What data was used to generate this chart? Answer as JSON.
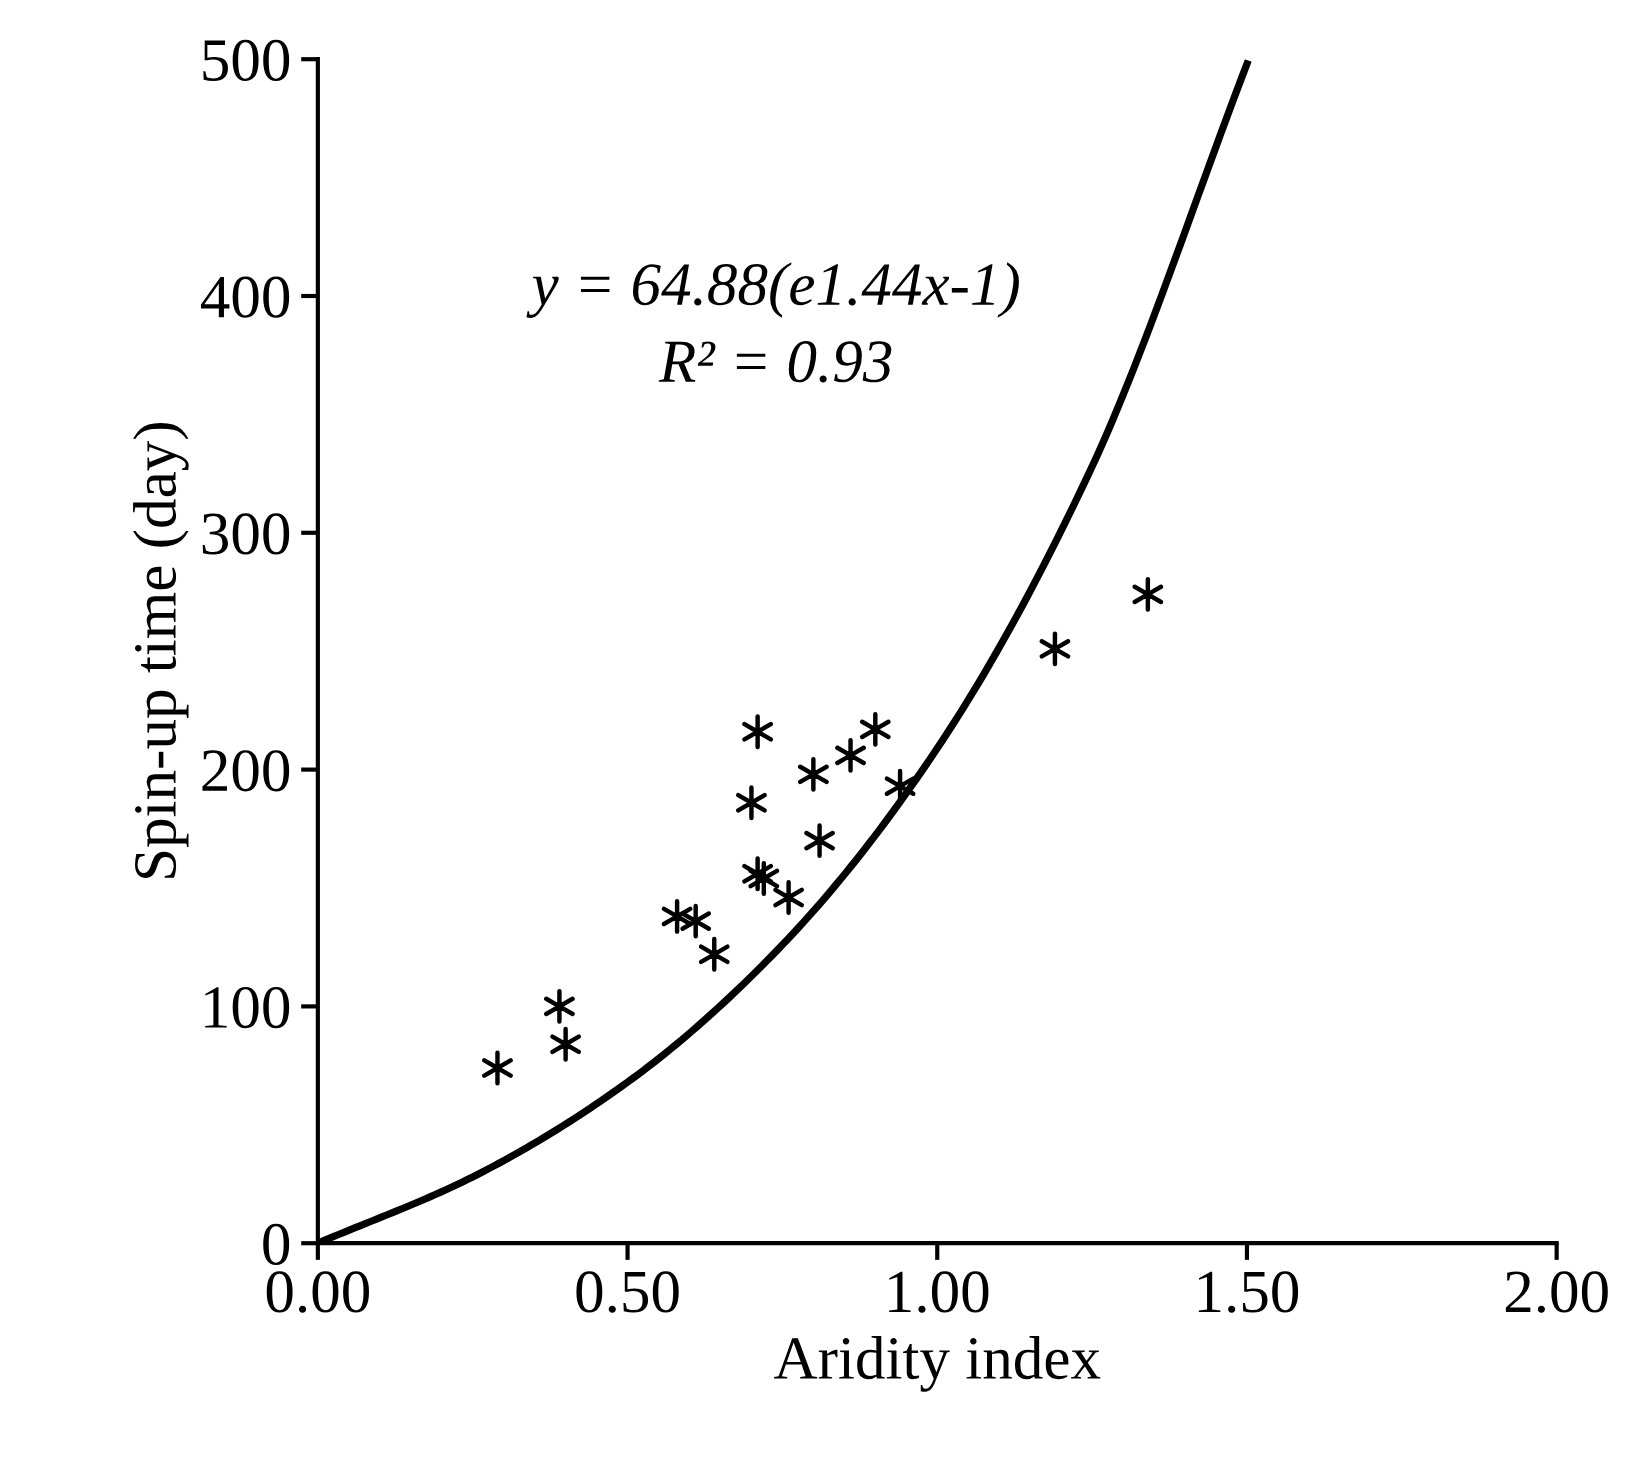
{
  "chart_data": {
    "type": "scatter",
    "xlabel": "Aridity index",
    "ylabel": "Spin-up time (day)",
    "annotations": [
      "y = 64.88(e1.44x-1)",
      "R² = 0.93"
    ],
    "xlim": [
      0,
      2
    ],
    "xticks": [
      {
        "value": 0,
        "label": "0.00"
      },
      {
        "value": 0.5,
        "label": "0.50"
      },
      {
        "value": 1,
        "label": "1.00"
      },
      {
        "value": 1.5,
        "label": "1.50"
      },
      {
        "value": 2,
        "label": "2.00"
      }
    ],
    "ylim": [
      0,
      500
    ],
    "yticks": [
      0,
      100,
      200,
      300,
      400,
      500
    ],
    "grid": false,
    "legend": false,
    "series": [
      {
        "color": "#000000",
        "marker": "cross",
        "x": [
          0.29,
          0.39,
          0.4,
          0.58,
          0.61,
          0.64,
          0.71,
          0.7,
          0.71,
          0.72,
          0.76,
          0.8,
          0.81,
          0.86,
          0.9,
          0.94,
          1.19,
          1.34
        ],
        "values": [
          74,
          100,
          84,
          138,
          136,
          122,
          216,
          186,
          156,
          154,
          146,
          198,
          170,
          206,
          217,
          193,
          251,
          274
        ]
      },
      {
        "type": "line",
        "color": "#000000",
        "marker": "none",
        "line_style": "solid",
        "x": [
          0,
          0.25,
          0.5,
          0.75,
          1.0,
          1.25,
          1.5
        ],
        "values": [
          0,
          28,
          68,
          126,
          209,
          328,
          498
        ]
      }
    ]
  }
}
